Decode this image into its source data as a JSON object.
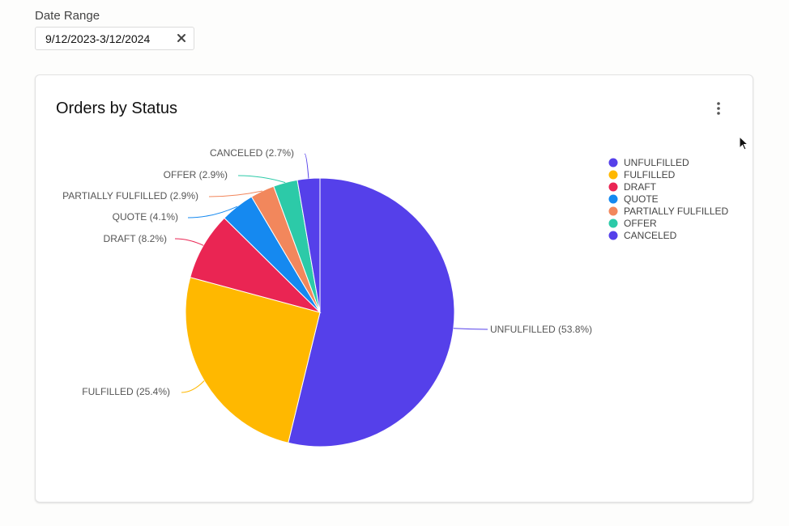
{
  "filter": {
    "label": "Date Range",
    "value": "9/12/2023-3/12/2024",
    "clear_icon": "close-icon"
  },
  "card": {
    "menu_icon": "more-vertical-icon"
  },
  "chart_data": {
    "type": "pie",
    "title": "Orders by Status",
    "legend_position": "top-right",
    "slices": [
      {
        "name": "UNFULFILLED",
        "percent": 53.8,
        "label": "UNFULFILLED (53.8%)",
        "color": "#5540ea"
      },
      {
        "name": "FULFILLED",
        "percent": 25.4,
        "label": "FULFILLED (25.4%)",
        "color": "#ffb800"
      },
      {
        "name": "DRAFT",
        "percent": 8.2,
        "label": "DRAFT (8.2%)",
        "color": "#ea2553"
      },
      {
        "name": "QUOTE",
        "percent": 4.1,
        "label": "QUOTE (4.1%)",
        "color": "#1589f0"
      },
      {
        "name": "PARTIALLY FULFILLED",
        "percent": 2.9,
        "label": "PARTIALLY FULFILLED (2.9%)",
        "color": "#f2875c"
      },
      {
        "name": "OFFER",
        "percent": 2.9,
        "label": "OFFER (2.9%)",
        "color": "#2ccaa8"
      },
      {
        "name": "CANCELED",
        "percent": 2.7,
        "label": "CANCELED (2.7%)",
        "color": "#5540ea"
      }
    ]
  }
}
